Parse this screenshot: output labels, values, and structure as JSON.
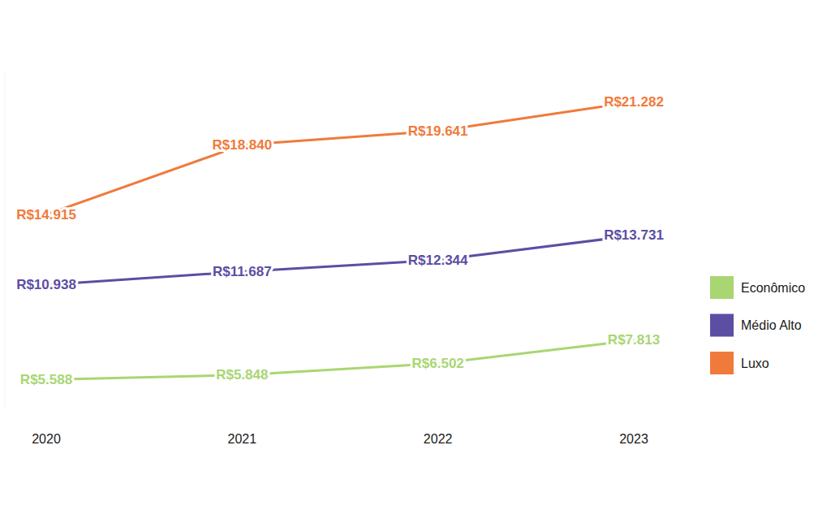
{
  "chart_data": {
    "type": "line",
    "categories": [
      "2020",
      "2021",
      "2022",
      "2023"
    ],
    "series": [
      {
        "name": "Econômico",
        "color": "#a9d672",
        "values": [
          5588,
          5848,
          6502,
          7813
        ],
        "value_labels": [
          "R$5.588",
          "R$5.848",
          "R$6.502",
          "R$7.813"
        ]
      },
      {
        "name": "Médio Alto",
        "color": "#5c4ea3",
        "values": [
          10938,
          11687,
          12344,
          13731
        ],
        "value_labels": [
          "R$10.938",
          "R$11.687",
          "R$12.344",
          "R$13.731"
        ]
      },
      {
        "name": "Luxo",
        "color": "#f07a3c",
        "values": [
          14915,
          18840,
          19641,
          21282
        ],
        "value_labels": [
          "R$14.915",
          "R$18.840",
          "R$19.641",
          "R$21.282"
        ]
      }
    ],
    "ylim": [
      4000,
      23000
    ],
    "data_labels": true,
    "tick_labels": "x",
    "legend": "right",
    "grid": false
  }
}
